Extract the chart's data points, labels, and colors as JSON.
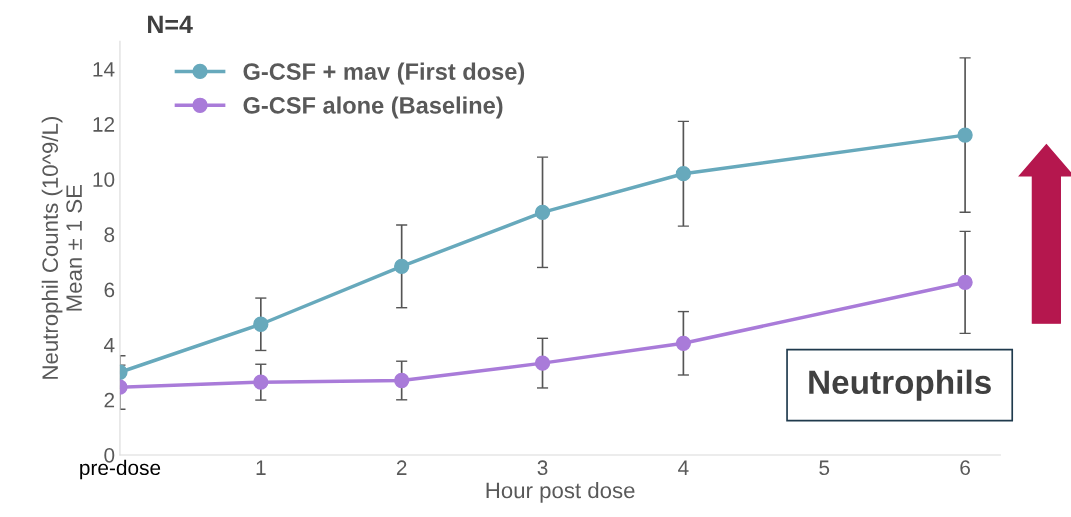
{
  "chart_data": {
    "type": "line",
    "title": "N=4",
    "xlabel": "Hour post dose",
    "ylabel": "Neutrophil Counts (10^9/L)\nMean ± 1 SE",
    "x": [
      0,
      1,
      2,
      3,
      4,
      6
    ],
    "series": [
      {
        "name": "G-CSF + mav (First dose)",
        "color": "#67a9bc",
        "values": [
          3.0,
          4.74,
          6.84,
          8.8,
          10.2,
          11.6
        ],
        "errors": [
          0.6,
          0.95,
          1.5,
          2.0,
          1.9,
          2.8
        ]
      },
      {
        "name": "G-CSF alone (Baseline)",
        "color": "#a97bd9",
        "values": [
          2.46,
          2.64,
          2.7,
          3.33,
          4.05,
          6.26
        ],
        "errors": [
          0.8,
          0.65,
          0.7,
          0.9,
          1.15,
          1.85
        ]
      }
    ],
    "xlim": [
      0,
      6.25
    ],
    "xticks": [
      {
        "value": 0,
        "label": "pre-dose"
      },
      1,
      2,
      3,
      4,
      5,
      6
    ],
    "ylim": [
      0,
      15
    ],
    "yticks": [
      0,
      2,
      4,
      6,
      8,
      10,
      12,
      14
    ],
    "annotations": [
      "Neutrophils"
    ],
    "grid": false,
    "legend": "top left",
    "marker": "circle",
    "line_style": "solid"
  }
}
